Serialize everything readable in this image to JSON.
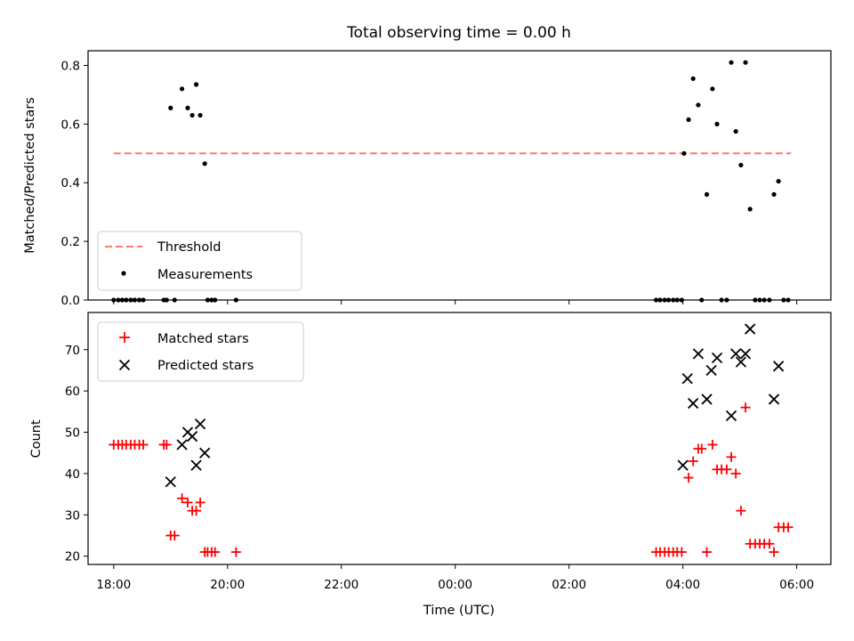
{
  "chart_data": [
    {
      "type": "scatter",
      "title": "Total observing time = 0.00 h",
      "ylabel": "Matched/Predicted stars",
      "xlabel": "",
      "ylim": [
        0,
        0.85
      ],
      "yticks": [
        "0.0",
        "0.2",
        "0.4",
        "0.6",
        "0.8"
      ],
      "ytick_values": [
        0,
        0.2,
        0.4,
        0.6,
        0.8
      ],
      "xlim": [
        17.55,
        30.6
      ],
      "grid": false,
      "legend_position": "lower-left",
      "threshold": {
        "name": "Threshold",
        "value": 0.5,
        "x": [
          18.0,
          29.9
        ],
        "color": "#ff7777"
      },
      "series": [
        {
          "name": "Measurements",
          "marker": "dot",
          "color": "#000000",
          "x": [
            18.0,
            18.08,
            18.15,
            18.22,
            18.3,
            18.37,
            18.45,
            18.52,
            18.88,
            18.93,
            19.0,
            19.07,
            19.2,
            19.3,
            19.38,
            19.45,
            19.52,
            19.6,
            19.65,
            19.72,
            19.78,
            20.15,
            27.53,
            27.6,
            27.68,
            27.75,
            27.83,
            27.9,
            27.98,
            28.02,
            28.1,
            28.18,
            28.27,
            28.33,
            28.42,
            28.52,
            28.6,
            28.68,
            28.77,
            28.85,
            28.93,
            29.02,
            29.1,
            29.18,
            29.27,
            29.35,
            29.43,
            29.52,
            29.6,
            29.68,
            29.77,
            29.85
          ],
          "y": [
            0,
            0,
            0,
            0,
            0,
            0,
            0,
            0,
            0,
            0,
            0.655,
            0,
            0.72,
            0.655,
            0.63,
            0.735,
            0.63,
            0.465,
            0,
            0,
            0,
            0,
            0,
            0,
            0,
            0,
            0,
            0,
            0,
            0.5,
            0.615,
            0.755,
            0.665,
            0,
            0.36,
            0.72,
            0.6,
            0,
            0,
            0.81,
            0.575,
            0.46,
            0.81,
            0.31,
            0,
            0,
            0,
            0,
            0.36,
            0.405,
            0,
            0
          ]
        }
      ]
    },
    {
      "type": "scatter",
      "ylabel": "Count",
      "xlabel": "Time (UTC)",
      "ylim": [
        18,
        79
      ],
      "yticks": [
        "20",
        "30",
        "40",
        "50",
        "60",
        "70"
      ],
      "ytick_values": [
        20,
        30,
        40,
        50,
        60,
        70
      ],
      "xlim": [
        17.55,
        30.6
      ],
      "xticks": [
        "18:00",
        "20:00",
        "22:00",
        "00:00",
        "02:00",
        "04:00",
        "06:00"
      ],
      "xtick_values": [
        18,
        20,
        22,
        24,
        26,
        28,
        30
      ],
      "grid": false,
      "legend_position": "upper-left",
      "series": [
        {
          "name": "Matched stars",
          "marker": "plus",
          "color": "#ff0000",
          "x": [
            18.0,
            18.08,
            18.15,
            18.22,
            18.3,
            18.37,
            18.45,
            18.52,
            18.88,
            18.93,
            19.0,
            19.07,
            19.2,
            19.3,
            19.38,
            19.45,
            19.52,
            19.6,
            19.65,
            19.72,
            19.78,
            20.15,
            27.53,
            27.6,
            27.68,
            27.75,
            27.83,
            27.9,
            27.98,
            28.1,
            28.18,
            28.27,
            28.33,
            28.42,
            28.52,
            28.6,
            28.68,
            28.77,
            28.85,
            28.93,
            29.02,
            29.1,
            29.18,
            29.27,
            29.35,
            29.43,
            29.52,
            29.6,
            29.68,
            29.77,
            29.85
          ],
          "y": [
            47,
            47,
            47,
            47,
            47,
            47,
            47,
            47,
            47,
            47,
            25,
            25,
            34,
            33,
            31,
            31,
            33,
            21,
            21,
            21,
            21,
            21,
            21,
            21,
            21,
            21,
            21,
            21,
            21,
            39,
            43,
            46,
            46,
            21,
            47,
            41,
            41,
            41,
            44,
            40,
            31,
            56,
            23,
            23,
            23,
            23,
            23,
            21,
            27,
            27,
            27
          ]
        },
        {
          "name": "Predicted stars",
          "marker": "x",
          "color": "#000000",
          "x": [
            19.0,
            19.2,
            19.3,
            19.38,
            19.45,
            19.52,
            19.6,
            28.0,
            28.08,
            28.18,
            28.27,
            28.42,
            28.5,
            28.6,
            28.85,
            28.93,
            29.02,
            29.1,
            29.18,
            29.6,
            29.68
          ],
          "y": [
            38,
            47,
            50,
            49,
            42,
            52,
            45,
            42,
            63,
            57,
            69,
            58,
            65,
            68,
            54,
            69,
            67,
            69,
            75,
            58,
            66
          ]
        }
      ]
    }
  ]
}
